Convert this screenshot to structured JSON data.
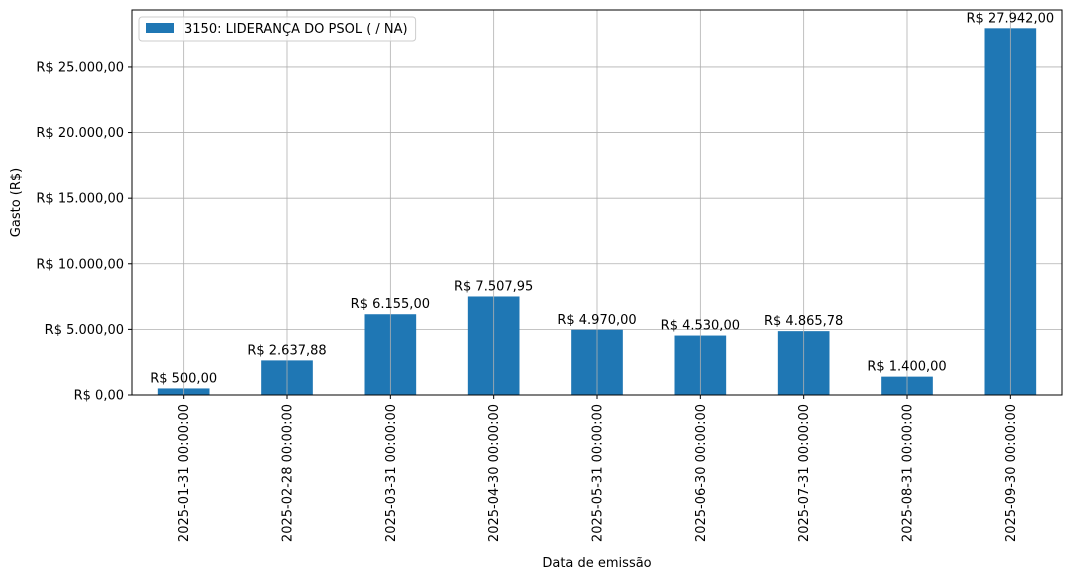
{
  "chart_data": {
    "type": "bar",
    "xlabel": "Data de emissão",
    "ylabel": "Gasto (R$)",
    "categories": [
      "2025-01-31 00:00:00",
      "2025-02-28 00:00:00",
      "2025-03-31 00:00:00",
      "2025-04-30 00:00:00",
      "2025-05-31 00:00:00",
      "2025-06-30 00:00:00",
      "2025-07-31 00:00:00",
      "2025-08-31 00:00:00",
      "2025-09-30 00:00:00"
    ],
    "series": [
      {
        "name": "3150: LIDERANÇA DO PSOL ( / NA)",
        "color": "#1f77b4",
        "values": [
          500.0,
          2637.88,
          6155.0,
          7507.95,
          4970.0,
          4530.0,
          4865.78,
          1400.0,
          27942.0
        ]
      }
    ],
    "data_labels": [
      "R$ 500,00",
      "R$ 2.637,88",
      "R$ 6.155,00",
      "R$ 7.507,95",
      "R$ 4.970,00",
      "R$ 4.530,00",
      "R$ 4.865,78",
      "R$ 1.400,00",
      "R$ 27.942,00"
    ],
    "yticks": [
      0,
      5000,
      10000,
      15000,
      20000,
      25000
    ],
    "ytick_labels": [
      "R$ 0,00",
      "R$ 5.000,00",
      "R$ 10.000,00",
      "R$ 15.000,00",
      "R$ 20.000,00",
      "R$ 25.000,00"
    ],
    "ylim": [
      0,
      29339.1
    ],
    "grid": true,
    "legend_position": "top-left"
  }
}
